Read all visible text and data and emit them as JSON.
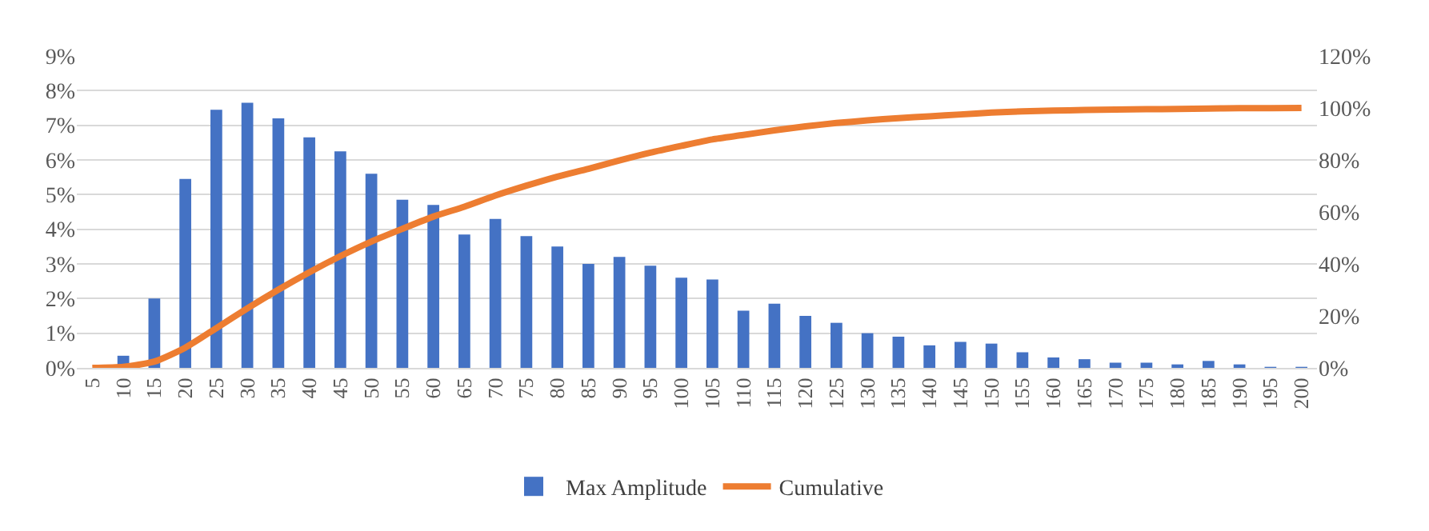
{
  "chart_data": {
    "type": "bar",
    "categories": [
      "5",
      "10",
      "15",
      "20",
      "25",
      "30",
      "35",
      "40",
      "45",
      "50",
      "55",
      "60",
      "65",
      "70",
      "75",
      "80",
      "85",
      "90",
      "95",
      "100",
      "105",
      "110",
      "115",
      "120",
      "125",
      "130",
      "135",
      "140",
      "145",
      "150",
      "155",
      "160",
      "165",
      "170",
      "175",
      "180",
      "185",
      "190",
      "195",
      "200"
    ],
    "series": [
      {
        "name": "Max Amplitude",
        "color": "#4472c4",
        "values": [
          0,
          0.35,
          2.0,
          5.45,
          7.45,
          7.65,
          7.2,
          6.65,
          6.25,
          5.6,
          4.85,
          4.7,
          3.85,
          4.3,
          3.8,
          3.5,
          3.0,
          3.2,
          2.95,
          2.6,
          2.55,
          1.65,
          1.85,
          1.5,
          1.3,
          1.0,
          0.9,
          0.65,
          0.75,
          0.7,
          0.45,
          0.3,
          0.25,
          0.15,
          0.15,
          0.1,
          0.2,
          0.1,
          0.03,
          0.03
        ]
      },
      {
        "name": "Cumulative",
        "type": "line",
        "axis": "y2",
        "color": "#ed7d31",
        "values": [
          0,
          0.4,
          2.4,
          7.8,
          15.3,
          22.9,
          30.1,
          36.8,
          43,
          48.6,
          53.5,
          58.2,
          62,
          66.3,
          70.1,
          73.6,
          76.6,
          79.8,
          82.8,
          85.4,
          87.9,
          89.6,
          91.4,
          92.9,
          94.2,
          95.2,
          96.1,
          96.8,
          97.5,
          98.2,
          98.7,
          99,
          99.2,
          99.4,
          99.5,
          99.6,
          99.8,
          99.9,
          99.9,
          100
        ]
      }
    ],
    "ylim": [
      0,
      9
    ],
    "yticks": [
      {
        "value": 0,
        "label": "0%"
      },
      {
        "value": 1,
        "label": "1%"
      },
      {
        "value": 2,
        "label": "2%"
      },
      {
        "value": 3,
        "label": "3%"
      },
      {
        "value": 4,
        "label": "4%"
      },
      {
        "value": 5,
        "label": "5%"
      },
      {
        "value": 6,
        "label": "6%"
      },
      {
        "value": 7,
        "label": "7%"
      },
      {
        "value": 8,
        "label": "8%"
      },
      {
        "value": 9,
        "label": "9%"
      }
    ],
    "y2lim": [
      0,
      120
    ],
    "y2ticks": [
      {
        "value": 0,
        "label": "0%"
      },
      {
        "value": 20,
        "label": "20%"
      },
      {
        "value": 40,
        "label": "40%"
      },
      {
        "value": 60,
        "label": "60%"
      },
      {
        "value": 80,
        "label": "80%"
      },
      {
        "value": 100,
        "label": "100%"
      },
      {
        "value": 120,
        "label": "120%"
      }
    ],
    "grid": "y",
    "legend": "bottom",
    "marker": "none",
    "line_style": "solid"
  }
}
